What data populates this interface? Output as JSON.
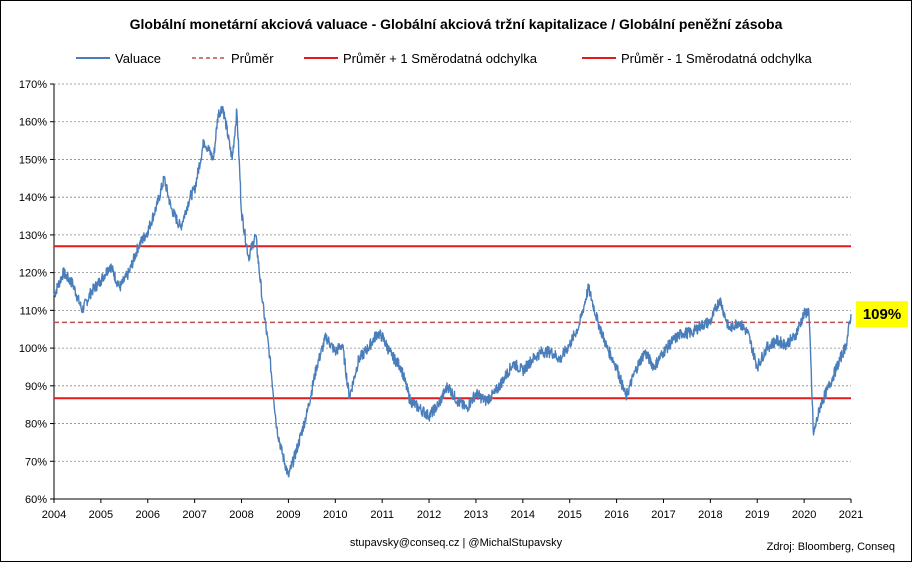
{
  "chart_data": {
    "type": "line",
    "title": "Globální monetární akciová valuace - Globální akciová tržní kapitalizace  / Globální peněžní zásoba",
    "xlabel": "",
    "ylabel": "",
    "x_ticks": [
      "2004",
      "2005",
      "2006",
      "2007",
      "2008",
      "2009",
      "2010",
      "2011",
      "2012",
      "2013",
      "2014",
      "2015",
      "2016",
      "2017",
      "2018",
      "2019",
      "2020",
      "2021"
    ],
    "y_ticks": [
      "60%",
      "70%",
      "80%",
      "90%",
      "100%",
      "110%",
      "120%",
      "130%",
      "140%",
      "150%",
      "160%",
      "170%"
    ],
    "xlim": [
      2004,
      2021
    ],
    "ylim": [
      60,
      170
    ],
    "grid": "horizontal dashed",
    "legend_position": "top",
    "series": [
      {
        "name": "Valuace",
        "color": "#4a7ebb",
        "style": "solid",
        "x": [
          2004.0,
          2004.2,
          2004.4,
          2004.6,
          2004.8,
          2005.0,
          2005.2,
          2005.4,
          2005.6,
          2005.8,
          2006.0,
          2006.2,
          2006.35,
          2006.5,
          2006.7,
          2006.9,
          2007.0,
          2007.2,
          2007.4,
          2007.5,
          2007.6,
          2007.8,
          2007.9,
          2008.0,
          2008.15,
          2008.3,
          2008.45,
          2008.6,
          2008.75,
          2008.85,
          2009.0,
          2009.2,
          2009.4,
          2009.6,
          2009.8,
          2010.0,
          2010.15,
          2010.3,
          2010.5,
          2010.7,
          2010.9,
          2011.0,
          2011.2,
          2011.4,
          2011.6,
          2011.8,
          2012.0,
          2012.2,
          2012.4,
          2012.6,
          2012.8,
          2013.0,
          2013.2,
          2013.4,
          2013.6,
          2013.8,
          2014.0,
          2014.2,
          2014.4,
          2014.6,
          2014.8,
          2015.0,
          2015.2,
          2015.4,
          2015.6,
          2015.8,
          2016.0,
          2016.2,
          2016.4,
          2016.6,
          2016.8,
          2017.0,
          2017.2,
          2017.4,
          2017.6,
          2017.8,
          2018.0,
          2018.2,
          2018.4,
          2018.6,
          2018.8,
          2019.0,
          2019.2,
          2019.4,
          2019.6,
          2019.8,
          2020.0,
          2020.1,
          2020.2,
          2020.35,
          2020.5,
          2020.7,
          2020.9,
          2021.0
        ],
        "y": [
          114,
          120,
          117,
          110,
          115,
          118,
          122,
          116,
          120,
          127,
          131,
          138,
          145,
          137,
          132,
          140,
          142,
          155,
          150,
          162,
          164,
          150,
          163,
          136,
          124,
          130,
          112,
          98,
          79,
          73,
          66,
          74,
          83,
          95,
          103,
          99,
          101,
          87,
          97,
          100,
          104,
          103,
          98,
          95,
          86,
          84,
          82,
          85,
          90,
          86,
          84,
          88,
          86,
          88,
          92,
          96,
          94,
          97,
          99,
          99,
          97,
          101,
          106,
          116,
          107,
          100,
          95,
          87,
          94,
          99,
          95,
          99,
          102,
          104,
          104,
          106,
          107,
          113,
          105,
          107,
          104,
          95,
          100,
          102,
          101,
          103,
          109,
          110,
          77,
          85,
          89,
          95,
          101,
          109
        ]
      },
      {
        "name": "Průměr",
        "color": "#c0504d",
        "style": "dashed",
        "value": 106.8
      },
      {
        "name": "Průměr + 1 Směrodatná odchylka",
        "color": "#e31a1c",
        "style": "solid",
        "value": 127.0
      },
      {
        "name": "Průměr - 1 Směrodatná odchylka",
        "color": "#e31a1c",
        "style": "solid",
        "value": 86.7
      }
    ],
    "callout": {
      "text": "109%",
      "value": 109,
      "background": "#ffff00"
    }
  },
  "footer": {
    "contact": "stupavsky@conseq.cz  |  @MichalStupavsky",
    "source": "Zdroj: Bloomberg, Conseq"
  },
  "colors": {
    "grid": "#888888",
    "axis": "#000000",
    "border": "#000000"
  }
}
